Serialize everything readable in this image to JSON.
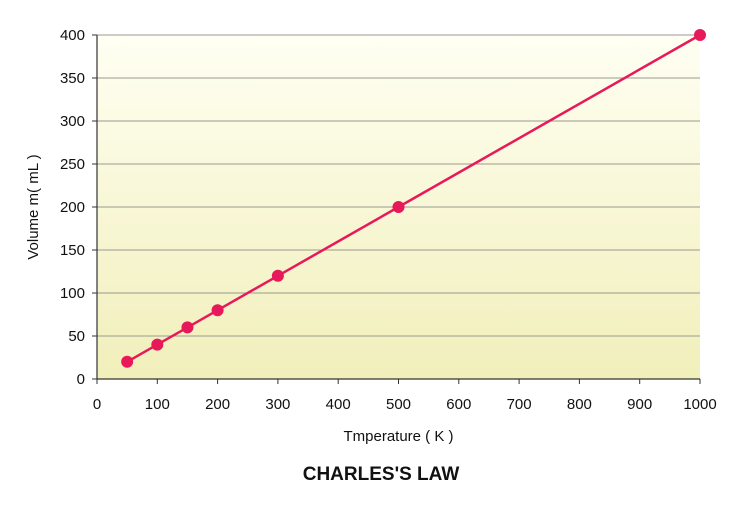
{
  "chart_data": {
    "type": "line",
    "title": "CHARLES'S LAW",
    "xlabel": "Tmperature ( K )",
    "ylabel": "Volume m( mL )",
    "xlim": [
      0,
      1000
    ],
    "ylim": [
      0,
      400
    ],
    "xticks": [
      0,
      100,
      200,
      300,
      400,
      500,
      600,
      700,
      800,
      900,
      1000
    ],
    "yticks": [
      0,
      50,
      100,
      150,
      200,
      250,
      300,
      350,
      400
    ],
    "grid": "horizontal",
    "legend": "none",
    "series": [
      {
        "x": [
          50,
          100,
          150,
          200,
          300,
          500,
          1000
        ],
        "y": [
          20,
          40,
          60,
          80,
          120,
          200,
          400
        ],
        "color": "#e8195a"
      }
    ],
    "colors": {
      "background_top": "#fffff3",
      "background_bottom": "#f1efba",
      "grid": "#9a9a90",
      "axis": "#333333",
      "series": "#e8195a"
    }
  }
}
